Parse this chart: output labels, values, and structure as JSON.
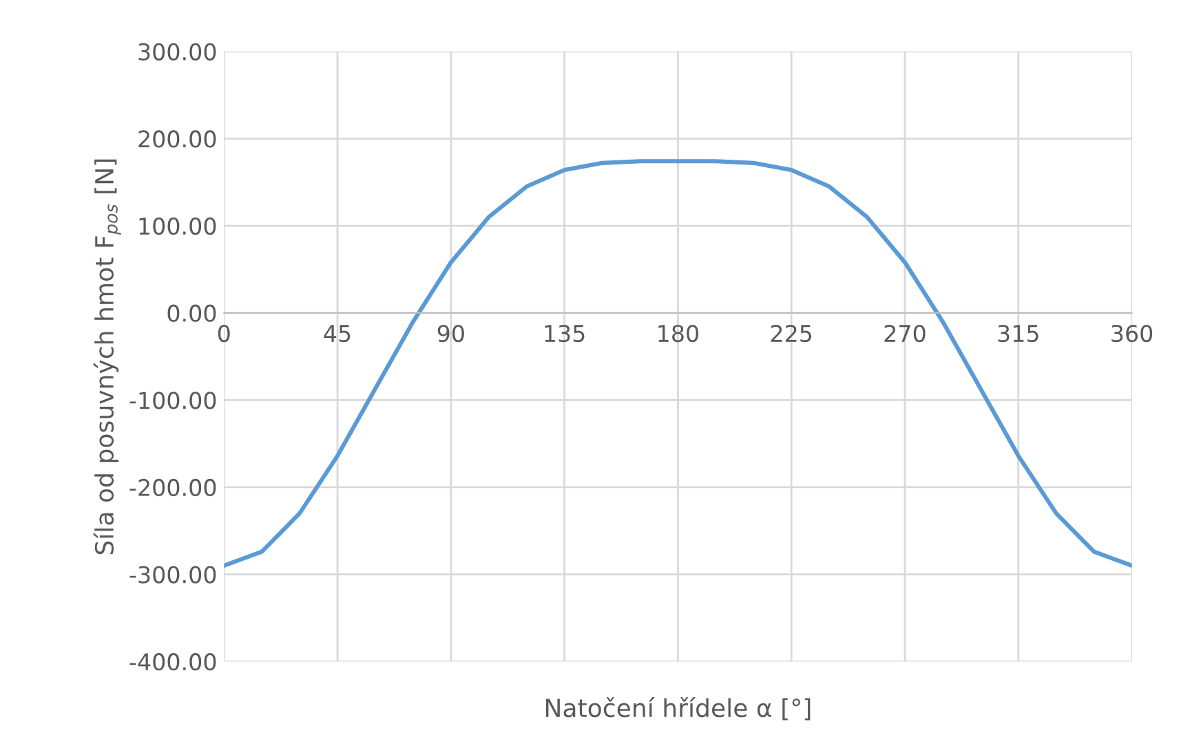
{
  "chart_data": {
    "type": "line",
    "xlabel": "Natočení hřídele α [°]",
    "ylabel": "Síla od posuvných hmot F$_{pos}$ [N]",
    "x": [
      0,
      15,
      30,
      45,
      60,
      75,
      90,
      105,
      120,
      135,
      150,
      165,
      180,
      195,
      210,
      225,
      240,
      255,
      270,
      285,
      300,
      315,
      330,
      345,
      360
    ],
    "series": [
      {
        "color": "#5b9bd5",
        "values": [
          -290,
          -274,
          -230,
          -164,
          -87,
          -10,
          58,
          110,
          145,
          164,
          172,
          174,
          174,
          174,
          172,
          164,
          145,
          110,
          58,
          -10,
          -87,
          -164,
          -230,
          -274,
          -290
        ]
      }
    ],
    "xlim": [
      0,
      360
    ],
    "xticks": [
      0,
      45,
      90,
      135,
      180,
      225,
      270,
      315,
      360
    ],
    "ylim": [
      -400,
      300
    ],
    "yticks": [
      {
        "value": -400,
        "label": "-400.00"
      },
      {
        "value": -300,
        "label": "-300.00"
      },
      {
        "value": -200,
        "label": "-200.00"
      },
      {
        "value": -100,
        "label": "-100.00"
      },
      {
        "value": 0,
        "label": "0.00"
      },
      {
        "value": 100,
        "label": "100.00"
      },
      {
        "value": 200,
        "label": "200.00"
      },
      {
        "value": 300,
        "label": "300.00"
      }
    ],
    "grid": true,
    "legend": false,
    "marker": "none",
    "line_style": "solid"
  }
}
